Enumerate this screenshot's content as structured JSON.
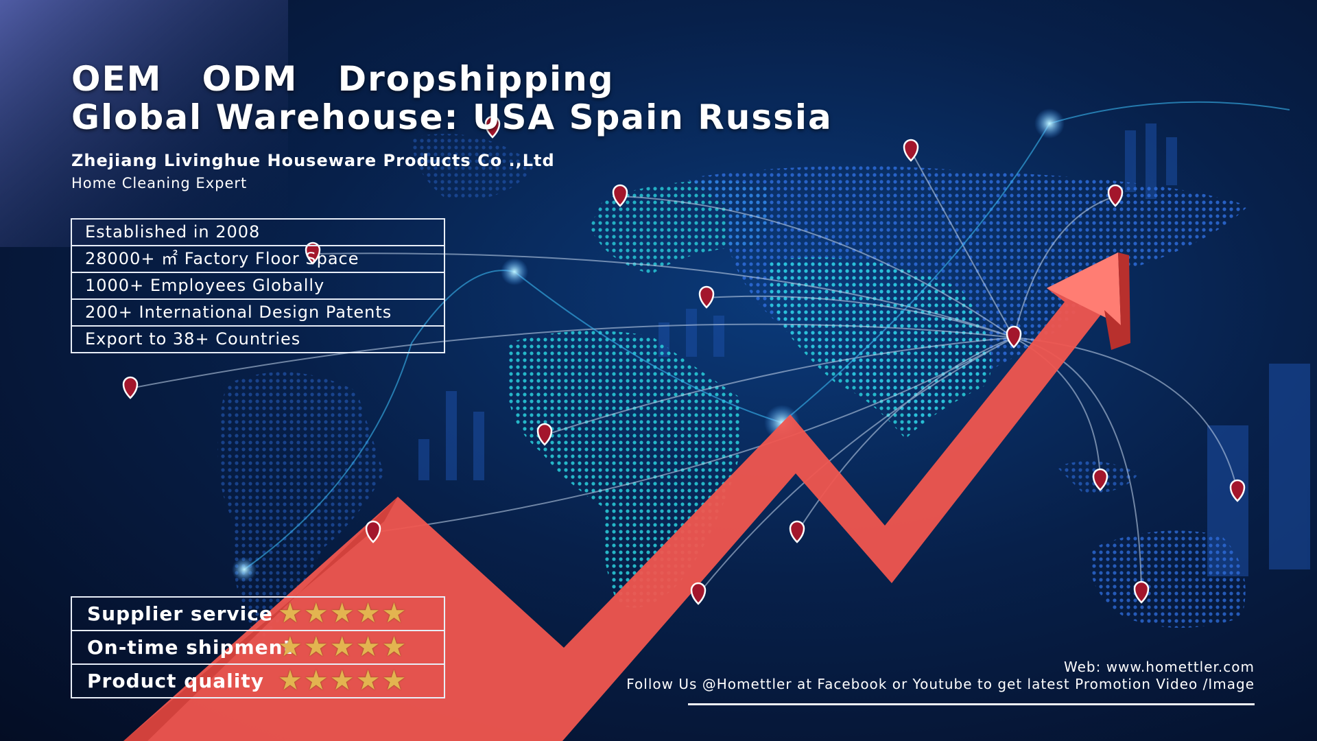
{
  "headline": {
    "line1": "OEM   ODM   Dropshipping",
    "line2": "Global Warehouse: USA Spain Russia"
  },
  "company": "Zhejiang Livinghue Houseware Products Co .,Ltd",
  "tagline": "Home Cleaning Expert",
  "facts": [
    "Established in 2008",
    "28000+ ㎡ Factory Floor Space",
    "1000+ Employees Globally",
    "200+ International Design Patents",
    "Export to 38+ Countries"
  ],
  "ratings": [
    {
      "label": "Supplier service",
      "stars": 5
    },
    {
      "label": "On-time shipment",
      "stars": 5
    },
    {
      "label": "Product quality",
      "stars": 5
    }
  ],
  "star_glyph": "★★★★★",
  "footer": {
    "web": "Web: www.homettler.com",
    "follow": "Follow Us @Homettler at Facebook or Youtube to get latest Promotion Video /Image"
  },
  "colors": {
    "arrow": "#f0564f",
    "star": "#e3b450",
    "map_dots": "#27c8d8",
    "pin": "#a3162c"
  },
  "icons": [
    "location-pin-icon",
    "star-icon",
    "trend-arrow-icon"
  ]
}
